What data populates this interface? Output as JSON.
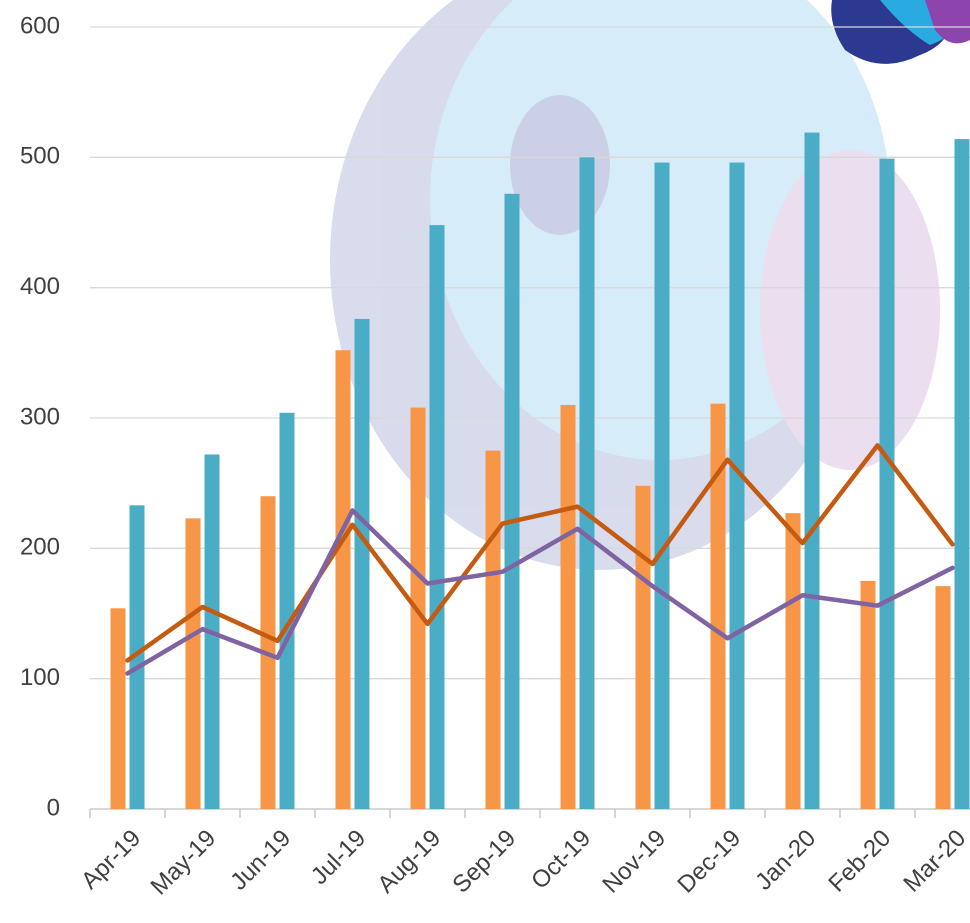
{
  "chart_data": {
    "type": "combo",
    "categories": [
      "Apr-19",
      "May-19",
      "Jun-19",
      "Jul-19",
      "Aug-19",
      "Sep-19",
      "Oct-19",
      "Nov-19",
      "Dec-19",
      "Jan-20",
      "Feb-20",
      "Mar-20"
    ],
    "series": [
      {
        "type": "bar",
        "color": "#f79646",
        "values": [
          154,
          223,
          240,
          352,
          308,
          275,
          310,
          248,
          311,
          227,
          175,
          171
        ]
      },
      {
        "type": "bar",
        "color": "#4bacc6",
        "values": [
          233,
          272,
          304,
          376,
          448,
          472,
          500,
          496,
          496,
          519,
          499,
          514
        ]
      },
      {
        "type": "line",
        "color": "#c55a11",
        "values": [
          114,
          155,
          129,
          218,
          142,
          219,
          232,
          188,
          268,
          204,
          279,
          203
        ]
      },
      {
        "type": "line",
        "color": "#8064a2",
        "values": [
          104,
          138,
          116,
          229,
          173,
          182,
          215,
          171,
          131,
          164,
          156,
          185
        ]
      }
    ],
    "ylim": [
      0,
      600
    ],
    "yticks": [
      0,
      100,
      200,
      300,
      400,
      500,
      600
    ],
    "grid": true
  }
}
